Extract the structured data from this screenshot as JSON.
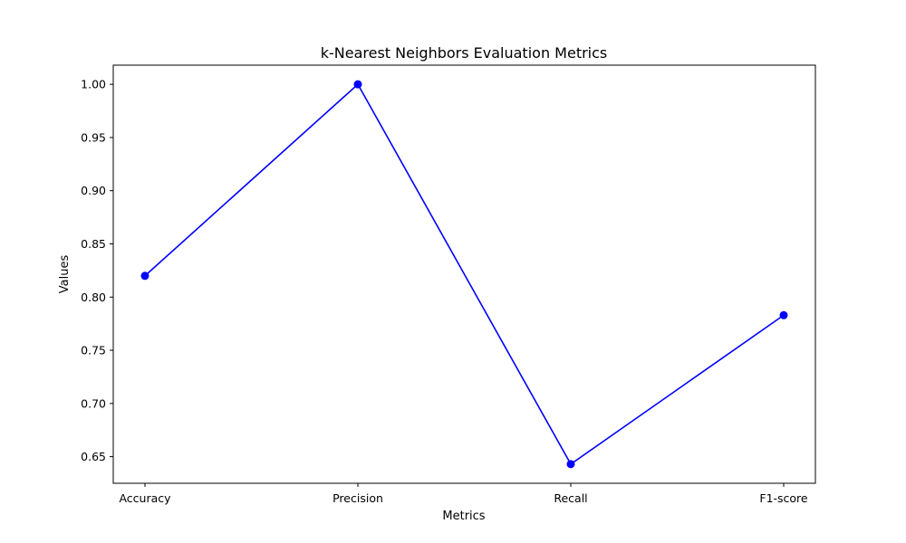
{
  "chart_data": {
    "type": "line",
    "title": "k-Nearest Neighbors Evaluation Metrics",
    "xlabel": "Metrics",
    "ylabel": "Values",
    "categories": [
      "Accuracy",
      "Precision",
      "Recall",
      "F1-score"
    ],
    "series": [
      {
        "values": [
          0.82,
          1.0,
          0.643,
          0.783
        ],
        "color": "#0000ff",
        "marker": "circle"
      }
    ],
    "ylim": [
      0.625,
      1.018
    ],
    "yticks": [
      0.65,
      0.7,
      0.75,
      0.8,
      0.85,
      0.9,
      0.95,
      1.0
    ],
    "ytick_labels": [
      "0.65",
      "0.70",
      "0.75",
      "0.80",
      "0.85",
      "0.90",
      "0.95",
      "1.00"
    ],
    "grid": false,
    "legend": false
  }
}
